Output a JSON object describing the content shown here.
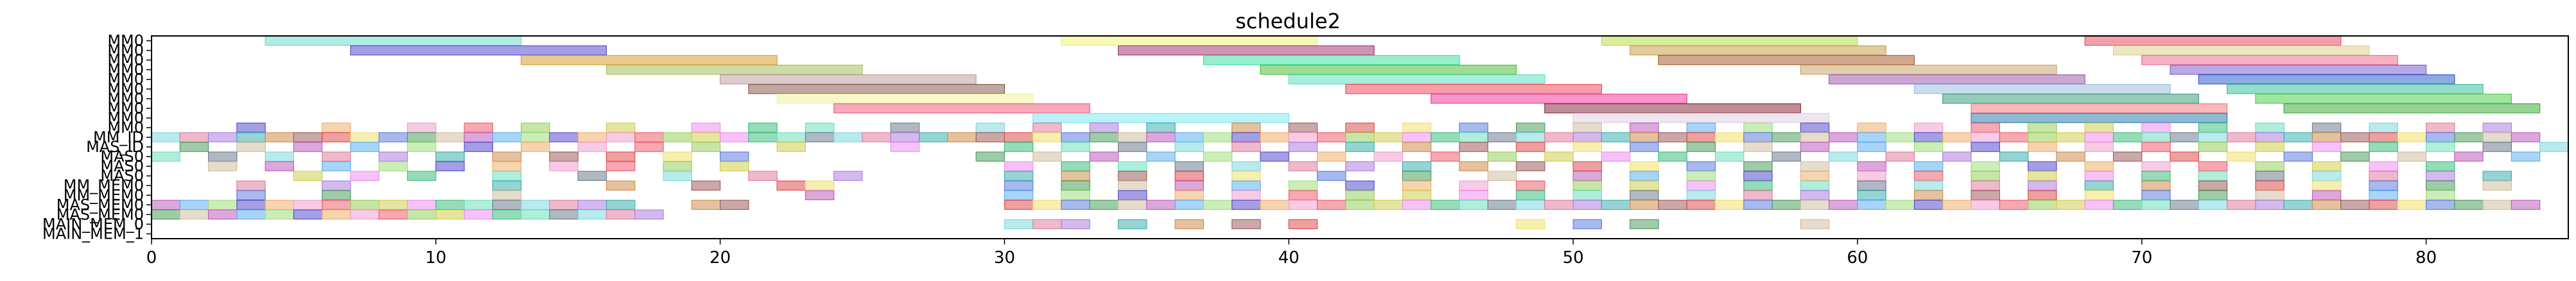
{
  "chart_data": {
    "type": "bar",
    "orientation": "horizontal-gantt",
    "title": "schedule2",
    "xlabel": "",
    "ylabel": "",
    "xlim": [
      0,
      85
    ],
    "x_ticks": [
      0,
      10,
      20,
      30,
      40,
      50,
      60,
      70,
      80
    ],
    "grid": false,
    "legend": "none",
    "rows": [
      "MM0",
      "MM0",
      "MM0",
      "MM0",
      "MM0",
      "MM0",
      "MM0",
      "MM0",
      "MM0",
      "MM0",
      "MM_ID",
      "MAS_ID",
      "MAS0",
      "MAS0",
      "MAS0",
      "MM_MEM0",
      "MM_MEM0",
      "MAS_MEM0",
      "MAS_MEM0",
      "MAIN_MEM_0",
      "MAIN_MEM_1"
    ],
    "long_tasks": [
      {
        "row": 0,
        "start": 4,
        "end": 13,
        "color": "#6fdcd0"
      },
      {
        "row": 0,
        "start": 32,
        "end": 41,
        "color": "#f0f07a"
      },
      {
        "row": 0,
        "start": 51,
        "end": 60,
        "color": "#b8e04a"
      },
      {
        "row": 0,
        "start": 68,
        "end": 77,
        "color": "#e8506a"
      },
      {
        "row": 1,
        "start": 7,
        "end": 16,
        "color": "#5a4ed0"
      },
      {
        "row": 1,
        "start": 34,
        "end": 43,
        "color": "#a83a78"
      },
      {
        "row": 1,
        "start": 52,
        "end": 61,
        "color": "#c8a050"
      },
      {
        "row": 1,
        "start": 69,
        "end": 78,
        "color": "#e0d090"
      },
      {
        "row": 2,
        "start": 13,
        "end": 22,
        "color": "#d8a030"
      },
      {
        "row": 2,
        "start": 37,
        "end": 46,
        "color": "#40e0a0"
      },
      {
        "row": 2,
        "start": 53,
        "end": 62,
        "color": "#a86030"
      },
      {
        "row": 2,
        "start": 70,
        "end": 79,
        "color": "#f07090"
      },
      {
        "row": 3,
        "start": 16,
        "end": 25,
        "color": "#a8c060"
      },
      {
        "row": 3,
        "start": 39,
        "end": 48,
        "color": "#50c040"
      },
      {
        "row": 3,
        "start": 58,
        "end": 67,
        "color": "#c8a870"
      },
      {
        "row": 3,
        "start": 71,
        "end": 80,
        "color": "#8060d0"
      },
      {
        "row": 4,
        "start": 20,
        "end": 29,
        "color": "#c0a0a0"
      },
      {
        "row": 4,
        "start": 40,
        "end": 49,
        "color": "#60e0c0"
      },
      {
        "row": 4,
        "start": 59,
        "end": 68,
        "color": "#a060b0"
      },
      {
        "row": 4,
        "start": 72,
        "end": 81,
        "color": "#3060d0"
      },
      {
        "row": 5,
        "start": 21,
        "end": 30,
        "color": "#8a6050"
      },
      {
        "row": 5,
        "start": 42,
        "end": 51,
        "color": "#f05060"
      },
      {
        "row": 5,
        "start": 62,
        "end": 71,
        "color": "#a0c0e0"
      },
      {
        "row": 5,
        "start": 73,
        "end": 82,
        "color": "#40c0a0"
      },
      {
        "row": 6,
        "start": 22,
        "end": 31,
        "color": "#f0f0a0"
      },
      {
        "row": 6,
        "start": 45,
        "end": 54,
        "color": "#f040a0"
      },
      {
        "row": 6,
        "start": 63,
        "end": 72,
        "color": "#40a080"
      },
      {
        "row": 6,
        "start": 74,
        "end": 83,
        "color": "#50d050"
      },
      {
        "row": 7,
        "start": 24,
        "end": 33,
        "color": "#f06080"
      },
      {
        "row": 7,
        "start": 49,
        "end": 58,
        "color": "#8a3040"
      },
      {
        "row": 7,
        "start": 64,
        "end": 73,
        "color": "#f08080"
      },
      {
        "row": 7,
        "start": 75,
        "end": 84,
        "color": "#40b040"
      },
      {
        "row": 8,
        "start": 31,
        "end": 40,
        "color": "#80e8f0"
      },
      {
        "row": 8,
        "start": 50,
        "end": 59,
        "color": "#e0d0e0"
      },
      {
        "row": 8,
        "start": 64,
        "end": 73,
        "color": "#3080b0"
      }
    ],
    "short_tasks": [
      {
        "row": 9,
        "x": [
          3,
          6,
          9,
          11,
          13,
          16,
          19,
          21,
          23,
          26,
          29,
          31,
          33,
          35,
          38,
          40,
          42,
          44,
          46,
          48,
          50,
          52,
          54,
          56,
          58,
          60,
          62,
          64,
          66,
          68,
          70,
          72,
          74,
          76,
          78,
          80,
          82
        ]
      },
      {
        "row": 10,
        "x": [
          0,
          1,
          2,
          3,
          4,
          5,
          6,
          7,
          8,
          9,
          10,
          11,
          12,
          13,
          14,
          15,
          16,
          17,
          18,
          19,
          20,
          21,
          22,
          23,
          24,
          25,
          26,
          27,
          28,
          29,
          30,
          31,
          32,
          33,
          34,
          35,
          36,
          37,
          38,
          39,
          40,
          41,
          42,
          43,
          44,
          45,
          46,
          47,
          48,
          49,
          50,
          51,
          52,
          53,
          54,
          55,
          56,
          57,
          58,
          59,
          60,
          61,
          62,
          63,
          64,
          65,
          66,
          67,
          68,
          69,
          70,
          71,
          72,
          73,
          74,
          75,
          76,
          77,
          78,
          79,
          80,
          81,
          82,
          83
        ]
      },
      {
        "row": 11,
        "x": [
          1,
          3,
          5,
          7,
          9,
          11,
          13,
          15,
          17,
          19,
          22,
          26,
          30,
          32,
          34,
          36,
          38,
          40,
          42,
          44,
          46,
          48,
          50,
          52,
          54,
          56,
          58,
          60,
          62,
          64,
          66,
          68,
          70,
          72,
          74,
          76,
          78,
          80,
          82,
          84
        ]
      },
      {
        "row": 12,
        "x": [
          0,
          2,
          4,
          6,
          8,
          10,
          12,
          14,
          16,
          18,
          20,
          29,
          31,
          33,
          35,
          37,
          39,
          41,
          43,
          45,
          47,
          49,
          51,
          53,
          55,
          57,
          59,
          61,
          63,
          65,
          67,
          69,
          71,
          73,
          75,
          77,
          79,
          81,
          83
        ]
      },
      {
        "row": 13,
        "x": [
          2,
          4,
          6,
          8,
          10,
          12,
          14,
          16,
          18,
          20,
          30,
          32,
          34,
          36,
          38,
          40,
          42,
          44,
          46,
          48,
          50,
          52,
          54,
          56,
          58,
          60,
          62,
          64,
          66,
          68,
          70,
          72,
          74,
          76,
          78,
          80
        ]
      },
      {
        "row": 14,
        "x": [
          5,
          7,
          9,
          12,
          15,
          18,
          21,
          24,
          30,
          32,
          34,
          36,
          38,
          41,
          44,
          47,
          50,
          52,
          54,
          56,
          58,
          60,
          62,
          64,
          66,
          68,
          70,
          72,
          74,
          76,
          78,
          80,
          82
        ]
      },
      {
        "row": 15,
        "x": [
          3,
          6,
          12,
          16,
          19,
          22,
          23,
          30,
          32,
          34,
          36,
          38,
          40,
          42,
          44,
          46,
          48,
          50,
          52,
          54,
          56,
          58,
          60,
          62,
          64,
          66,
          68,
          70,
          72,
          74,
          76,
          78,
          80,
          82
        ]
      },
      {
        "row": 16,
        "x": [
          3,
          6,
          12,
          23,
          30,
          32,
          34,
          36,
          38,
          40,
          42,
          44,
          46,
          48,
          50,
          52,
          54,
          56,
          58,
          60,
          62,
          64,
          66,
          68,
          70,
          72,
          74,
          76,
          78,
          80
        ]
      },
      {
        "row": 17,
        "x": [
          0,
          1,
          2,
          3,
          4,
          5,
          6,
          7,
          8,
          9,
          10,
          11,
          12,
          13,
          14,
          15,
          16,
          19,
          20,
          30,
          31,
          32,
          33,
          34,
          35,
          36,
          37,
          38,
          39,
          40,
          41,
          42,
          43,
          44,
          45,
          46,
          47,
          48,
          49,
          50,
          51,
          52,
          53,
          54,
          55,
          56,
          57,
          58,
          59,
          60,
          61,
          62,
          63,
          64,
          65,
          66,
          67,
          68,
          69,
          70,
          71,
          72,
          73,
          74,
          75,
          76,
          77,
          78,
          79,
          80,
          81,
          82,
          83
        ]
      },
      {
        "row": 18,
        "x": [
          0,
          1,
          2,
          3,
          4,
          5,
          6,
          7,
          8,
          9,
          10,
          11,
          12,
          13,
          14,
          15,
          16,
          17
        ]
      },
      {
        "row": 19,
        "x": [
          30,
          31,
          32,
          34,
          36,
          38,
          40,
          48,
          50,
          52,
          58
        ]
      }
    ],
    "palette": [
      "#f06070",
      "#80d8e0",
      "#f0e070",
      "#5a50d0",
      "#40c080",
      "#d09050",
      "#c060c0",
      "#9ad060",
      "#e080a0",
      "#6080e0",
      "#f0b070",
      "#70e0c0",
      "#a06060",
      "#60b0f0",
      "#d0d050",
      "#b080e0",
      "#50a060",
      "#f0a0d0",
      "#708090",
      "#e05050",
      "#a0e080",
      "#f090f0",
      "#40b0b0",
      "#d0c0a0"
    ]
  }
}
